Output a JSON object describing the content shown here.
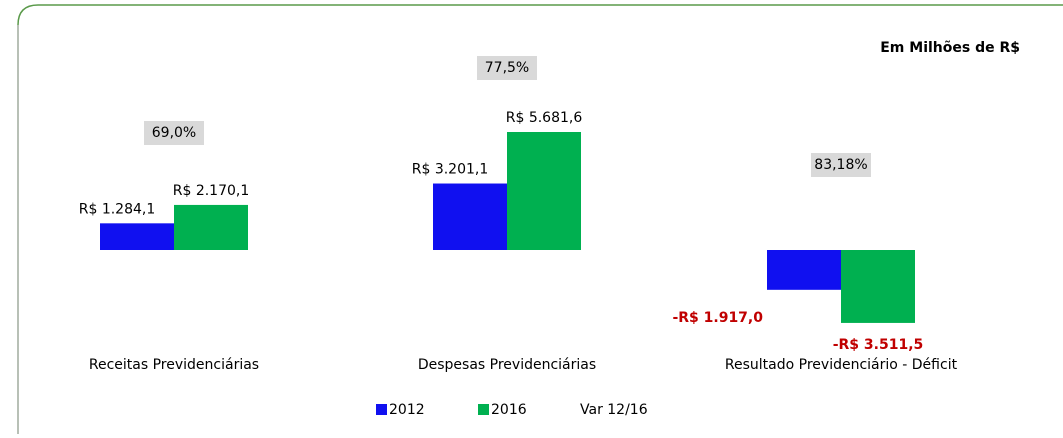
{
  "chart_data": {
    "type": "bar",
    "title": "Em Milhões de R$",
    "categories": [
      "Receitas Previdenciárias",
      "Despesas Previdenciárias",
      "Resultado Previdenciário - Déficit"
    ],
    "series": [
      {
        "name": "2012",
        "color": "#1010f0",
        "values": [
          1284.1,
          3201.1,
          -1917.0
        ],
        "value_labels": [
          "R$ 1.284,1",
          "R$ 3.201,1",
          "-R$ 1.917,0"
        ]
      },
      {
        "name": "2016",
        "color": "#00b050",
        "values": [
          2170.1,
          5681.6,
          -3511.5
        ],
        "value_labels": [
          "R$ 2.170,1",
          "R$ 5.681,6",
          "-R$ 3.511,5"
        ]
      },
      {
        "name": "Var 12/16",
        "color": "#d9d9d9",
        "values": [
          69.0,
          77.5,
          83.18
        ],
        "value_labels": [
          "69,0%",
          "77,5%",
          "83,18%"
        ]
      }
    ]
  }
}
